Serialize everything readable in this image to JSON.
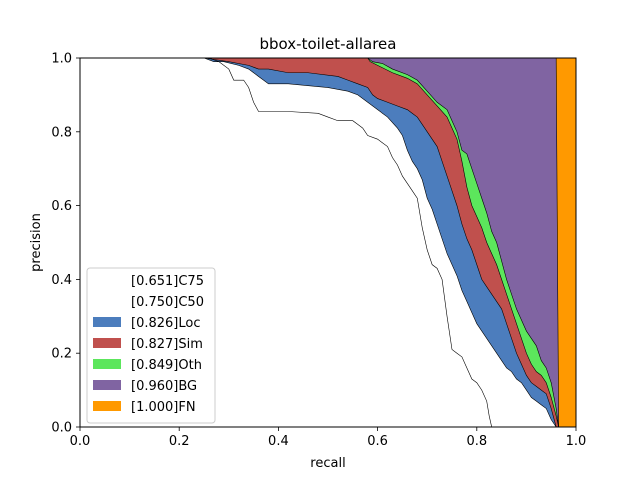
{
  "chart_data": {
    "type": "area",
    "title": "bbox-toilet-allarea",
    "xlabel": "recall",
    "ylabel": "precision",
    "xlim": [
      0,
      1
    ],
    "ylim": [
      0,
      1
    ],
    "xticks": [
      "0.0",
      "0.2",
      "0.4",
      "0.6",
      "0.8",
      "1.0"
    ],
    "yticks": [
      "0.0",
      "0.2",
      "0.4",
      "0.6",
      "0.8",
      "1.0"
    ],
    "grid": false,
    "legend_position": "lower-left",
    "series": [
      {
        "name": "[0.651]C75",
        "color": "#ffffff",
        "points": [
          [
            0,
            1
          ],
          [
            0.26,
            1
          ],
          [
            0.28,
            0.99
          ],
          [
            0.3,
            0.97
          ],
          [
            0.31,
            0.94
          ],
          [
            0.33,
            0.94
          ],
          [
            0.34,
            0.92
          ],
          [
            0.35,
            0.88
          ],
          [
            0.36,
            0.855
          ],
          [
            0.42,
            0.855
          ],
          [
            0.48,
            0.85
          ],
          [
            0.5,
            0.84
          ],
          [
            0.52,
            0.83
          ],
          [
            0.55,
            0.83
          ],
          [
            0.56,
            0.82
          ],
          [
            0.57,
            0.81
          ],
          [
            0.58,
            0.79
          ],
          [
            0.6,
            0.78
          ],
          [
            0.62,
            0.76
          ],
          [
            0.63,
            0.73
          ],
          [
            0.64,
            0.71
          ],
          [
            0.65,
            0.68
          ],
          [
            0.66,
            0.66
          ],
          [
            0.67,
            0.64
          ],
          [
            0.68,
            0.62
          ],
          [
            0.69,
            0.54
          ],
          [
            0.7,
            0.48
          ],
          [
            0.71,
            0.44
          ],
          [
            0.72,
            0.43
          ],
          [
            0.73,
            0.4
          ],
          [
            0.74,
            0.3
          ],
          [
            0.75,
            0.21
          ],
          [
            0.76,
            0.2
          ],
          [
            0.77,
            0.19
          ],
          [
            0.78,
            0.16
          ],
          [
            0.79,
            0.13
          ],
          [
            0.8,
            0.12
          ],
          [
            0.81,
            0.1
          ],
          [
            0.82,
            0.07
          ],
          [
            0.825,
            0.03
          ],
          [
            0.83,
            0
          ]
        ]
      },
      {
        "name": "[0.750]C50",
        "color": "#ffffff",
        "points": [
          [
            0,
            1
          ],
          [
            0.25,
            1
          ],
          [
            0.27,
            0.99
          ],
          [
            0.29,
            0.99
          ],
          [
            0.32,
            0.98
          ],
          [
            0.34,
            0.97
          ],
          [
            0.35,
            0.96
          ],
          [
            0.36,
            0.95
          ],
          [
            0.37,
            0.94
          ],
          [
            0.38,
            0.93
          ],
          [
            0.42,
            0.93
          ],
          [
            0.5,
            0.92
          ],
          [
            0.54,
            0.91
          ],
          [
            0.56,
            0.9
          ],
          [
            0.58,
            0.88
          ],
          [
            0.6,
            0.86
          ],
          [
            0.62,
            0.84
          ],
          [
            0.64,
            0.81
          ],
          [
            0.65,
            0.79
          ],
          [
            0.66,
            0.75
          ],
          [
            0.67,
            0.72
          ],
          [
            0.68,
            0.7
          ],
          [
            0.69,
            0.67
          ],
          [
            0.7,
            0.62
          ],
          [
            0.71,
            0.59
          ],
          [
            0.72,
            0.55
          ],
          [
            0.73,
            0.51
          ],
          [
            0.74,
            0.47
          ],
          [
            0.75,
            0.44
          ],
          [
            0.76,
            0.41
          ],
          [
            0.77,
            0.37
          ],
          [
            0.78,
            0.34
          ],
          [
            0.79,
            0.31
          ],
          [
            0.8,
            0.28
          ],
          [
            0.81,
            0.26
          ],
          [
            0.82,
            0.24
          ],
          [
            0.83,
            0.22
          ],
          [
            0.84,
            0.2
          ],
          [
            0.85,
            0.18
          ],
          [
            0.86,
            0.16
          ],
          [
            0.87,
            0.15
          ],
          [
            0.88,
            0.13
          ],
          [
            0.89,
            0.12
          ],
          [
            0.9,
            0.1
          ],
          [
            0.91,
            0.08
          ],
          [
            0.92,
            0.07
          ],
          [
            0.93,
            0.06
          ],
          [
            0.94,
            0.05
          ],
          [
            0.95,
            0.02
          ],
          [
            0.96,
            0
          ]
        ]
      },
      {
        "name": "[0.826]Loc",
        "color": "#4c7dbd",
        "points": [
          [
            0,
            1
          ],
          [
            0.25,
            1
          ],
          [
            0.3,
            0.99
          ],
          [
            0.34,
            0.98
          ],
          [
            0.36,
            0.97
          ],
          [
            0.38,
            0.97
          ],
          [
            0.42,
            0.96
          ],
          [
            0.46,
            0.96
          ],
          [
            0.52,
            0.95
          ],
          [
            0.54,
            0.94
          ],
          [
            0.56,
            0.93
          ],
          [
            0.58,
            0.92
          ],
          [
            0.59,
            0.9
          ],
          [
            0.6,
            0.89
          ],
          [
            0.62,
            0.88
          ],
          [
            0.64,
            0.87
          ],
          [
            0.66,
            0.86
          ],
          [
            0.67,
            0.85
          ],
          [
            0.68,
            0.84
          ],
          [
            0.69,
            0.82
          ],
          [
            0.7,
            0.8
          ],
          [
            0.71,
            0.78
          ],
          [
            0.72,
            0.76
          ],
          [
            0.73,
            0.72
          ],
          [
            0.74,
            0.68
          ],
          [
            0.75,
            0.64
          ],
          [
            0.76,
            0.6
          ],
          [
            0.77,
            0.55
          ],
          [
            0.78,
            0.51
          ],
          [
            0.79,
            0.48
          ],
          [
            0.8,
            0.44
          ],
          [
            0.81,
            0.4
          ],
          [
            0.82,
            0.38
          ],
          [
            0.83,
            0.36
          ],
          [
            0.84,
            0.34
          ],
          [
            0.85,
            0.32
          ],
          [
            0.86,
            0.28
          ],
          [
            0.87,
            0.24
          ],
          [
            0.88,
            0.2
          ],
          [
            0.89,
            0.17
          ],
          [
            0.9,
            0.14
          ],
          [
            0.91,
            0.12
          ],
          [
            0.92,
            0.11
          ],
          [
            0.93,
            0.1
          ],
          [
            0.94,
            0.09
          ],
          [
            0.95,
            0.05
          ],
          [
            0.96,
            0
          ]
        ]
      },
      {
        "name": "[0.827]Sim",
        "color": "#c0504d",
        "points": [
          [
            0,
            1
          ],
          [
            0.58,
            1
          ],
          [
            0.585,
            0.99
          ],
          [
            0.6,
            0.98
          ],
          [
            0.63,
            0.96
          ],
          [
            0.66,
            0.945
          ],
          [
            0.68,
            0.93
          ],
          [
            0.7,
            0.9
          ],
          [
            0.72,
            0.87
          ],
          [
            0.74,
            0.84
          ],
          [
            0.76,
            0.78
          ],
          [
            0.77,
            0.72
          ],
          [
            0.78,
            0.65
          ],
          [
            0.79,
            0.6
          ],
          [
            0.8,
            0.57
          ],
          [
            0.81,
            0.54
          ],
          [
            0.82,
            0.5
          ],
          [
            0.83,
            0.47
          ],
          [
            0.84,
            0.44
          ],
          [
            0.85,
            0.4
          ],
          [
            0.86,
            0.36
          ],
          [
            0.87,
            0.32
          ],
          [
            0.88,
            0.28
          ],
          [
            0.89,
            0.24
          ],
          [
            0.9,
            0.2
          ],
          [
            0.91,
            0.17
          ],
          [
            0.92,
            0.15
          ],
          [
            0.93,
            0.14
          ],
          [
            0.94,
            0.12
          ],
          [
            0.95,
            0.08
          ],
          [
            0.96,
            0.03
          ],
          [
            0.965,
            0
          ]
        ]
      },
      {
        "name": "[0.849]Oth",
        "color": "#5ce65c",
        "points": [
          [
            0,
            1
          ],
          [
            0.58,
            1
          ],
          [
            0.59,
            0.99
          ],
          [
            0.61,
            0.985
          ],
          [
            0.63,
            0.97
          ],
          [
            0.66,
            0.955
          ],
          [
            0.68,
            0.94
          ],
          [
            0.7,
            0.91
          ],
          [
            0.72,
            0.88
          ],
          [
            0.74,
            0.86
          ],
          [
            0.76,
            0.8
          ],
          [
            0.77,
            0.75
          ],
          [
            0.78,
            0.74
          ],
          [
            0.79,
            0.7
          ],
          [
            0.8,
            0.66
          ],
          [
            0.81,
            0.62
          ],
          [
            0.82,
            0.58
          ],
          [
            0.83,
            0.53
          ],
          [
            0.84,
            0.5
          ],
          [
            0.85,
            0.45
          ],
          [
            0.86,
            0.4
          ],
          [
            0.87,
            0.36
          ],
          [
            0.88,
            0.32
          ],
          [
            0.89,
            0.29
          ],
          [
            0.9,
            0.26
          ],
          [
            0.91,
            0.24
          ],
          [
            0.92,
            0.22
          ],
          [
            0.93,
            0.18
          ],
          [
            0.94,
            0.16
          ],
          [
            0.95,
            0.12
          ],
          [
            0.96,
            0.05
          ],
          [
            0.965,
            0
          ]
        ]
      },
      {
        "name": "[0.960]BG",
        "color": "#8064a2",
        "points": [
          [
            0,
            1
          ],
          [
            0.96,
            1
          ],
          [
            0.965,
            0
          ]
        ]
      },
      {
        "name": "[1.000]FN",
        "color": "#ff9900",
        "points": [
          [
            0,
            1
          ],
          [
            1,
            1
          ],
          [
            1,
            0
          ]
        ]
      }
    ]
  }
}
